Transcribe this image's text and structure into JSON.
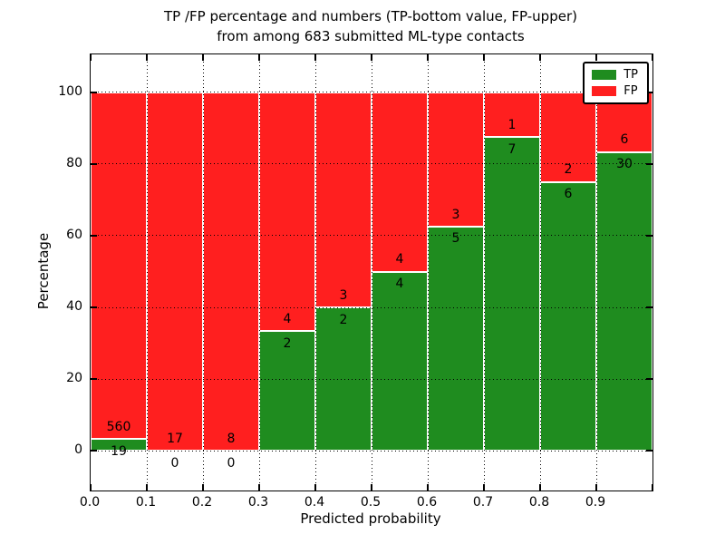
{
  "chart_data": {
    "type": "bar",
    "stacked": true,
    "title": "TP /FP percentage and numbers (TP-bottom value, FP-upper) from among 683 submitted ML-type contacts",
    "title_line1": "TP /FP percentage and numbers (TP-bottom value, FP-upper)",
    "title_line2": "from among 683 submitted ML-type contacts",
    "xlabel": "Predicted probability",
    "ylabel": "Percentage",
    "total_contacts": 683,
    "categories": [
      "0.0-0.1",
      "0.1-0.2",
      "0.2-0.3",
      "0.3-0.4",
      "0.4-0.5",
      "0.5-0.6",
      "0.6-0.7",
      "0.7-0.8",
      "0.8-0.9",
      "0.9-1.0"
    ],
    "series": [
      {
        "name": "TP",
        "color": "#1f8c1f",
        "counts": [
          19,
          0,
          0,
          2,
          2,
          4,
          5,
          7,
          6,
          30
        ],
        "percent": [
          3.28,
          0,
          0,
          33.33,
          40.0,
          50.0,
          62.5,
          87.5,
          75.0,
          83.33
        ]
      },
      {
        "name": "FP",
        "color": "#ff1f1f",
        "counts": [
          560,
          17,
          8,
          4,
          3,
          4,
          3,
          1,
          2,
          6
        ],
        "percent": [
          96.72,
          100.0,
          100.0,
          66.67,
          60.0,
          50.0,
          37.5,
          12.5,
          25.0,
          16.67
        ]
      }
    ],
    "xticks": [
      "0.0",
      "0.1",
      "0.2",
      "0.3",
      "0.4",
      "0.5",
      "0.6",
      "0.7",
      "0.8",
      "0.9"
    ],
    "yticks": [
      0,
      20,
      40,
      60,
      80,
      100
    ],
    "xlim": [
      0.0,
      1.0
    ],
    "ylim": [
      -11,
      110.5
    ],
    "grid": "dotted",
    "legend": {
      "position": "upper-right",
      "entries": [
        {
          "label": "TP",
          "color": "#1f8c1f"
        },
        {
          "label": "FP",
          "color": "#ff1f1f"
        }
      ]
    }
  }
}
